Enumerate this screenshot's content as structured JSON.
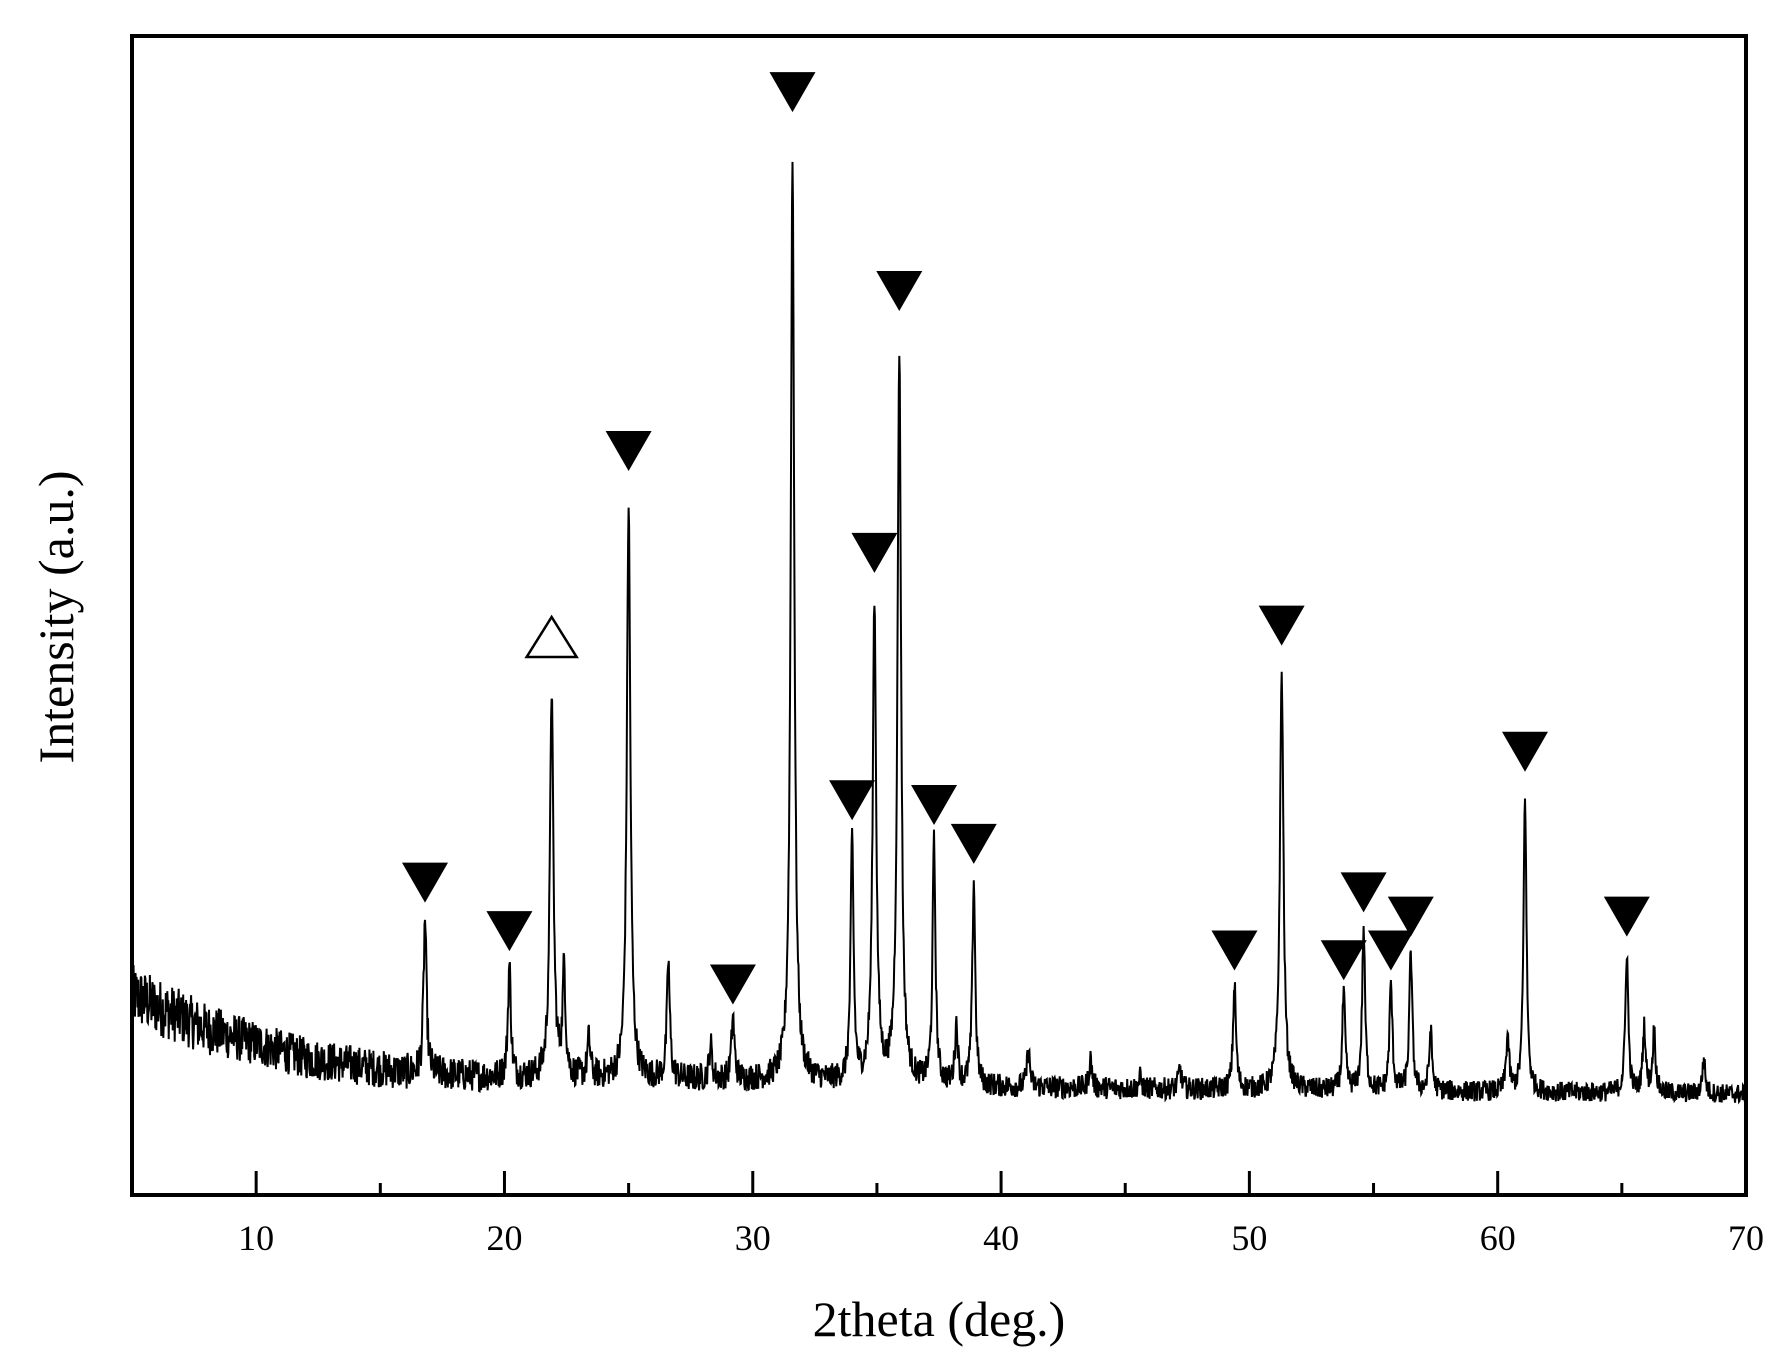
{
  "chart_data": {
    "type": "line",
    "xlabel": "2theta (deg.)",
    "ylabel": "Intensity (a.u.)",
    "xlim": [
      5,
      70
    ],
    "ylim": [
      0,
      100
    ],
    "x_ticks": [
      10,
      20,
      30,
      40,
      50,
      60,
      70
    ],
    "x_minor_ticks": [
      15,
      25,
      35,
      45,
      55,
      65
    ],
    "y_ticks_shown": false,
    "grid": false,
    "legend": "none",
    "line_color": "#000000",
    "baseline": {
      "points": [
        [
          5,
          17
        ],
        [
          8,
          13.5
        ],
        [
          12,
          10.5
        ],
        [
          16,
          9
        ],
        [
          20,
          8.5
        ],
        [
          30,
          8.2
        ],
        [
          40,
          7.5
        ],
        [
          50,
          7.2
        ],
        [
          60,
          7
        ],
        [
          70,
          6.8
        ]
      ],
      "noise_amplitude": [
        [
          5,
          3.2
        ],
        [
          10,
          2.3
        ],
        [
          20,
          1.6
        ],
        [
          40,
          1.2
        ],
        [
          70,
          1.0
        ]
      ]
    },
    "series": [
      {
        "peaks": [
          {
            "x": 16.8,
            "y": 25.5,
            "marker": "filled-triangle-down"
          },
          {
            "x": 20.2,
            "y": 20.5,
            "marker": "filled-triangle-down"
          },
          {
            "x": 21.9,
            "y": 50,
            "marker": "open-triangle-up"
          },
          {
            "x": 22.4,
            "y": 20
          },
          {
            "x": 23.4,
            "y": 12.5
          },
          {
            "x": 25.0,
            "y": 70,
            "marker": "filled-triangle-down"
          },
          {
            "x": 26.6,
            "y": 21
          },
          {
            "x": 28.3,
            "y": 12
          },
          {
            "x": 29.2,
            "y": 15,
            "marker": "filled-triangle-down"
          },
          {
            "x": 31.6,
            "y": 107,
            "marker": "filled-triangle-down"
          },
          {
            "x": 34.0,
            "y": 34,
            "marker": "filled-triangle-down"
          },
          {
            "x": 34.9,
            "y": 59.5,
            "marker": "filled-triangle-down"
          },
          {
            "x": 35.9,
            "y": 86.5,
            "marker": "filled-triangle-down"
          },
          {
            "x": 37.3,
            "y": 33.5,
            "marker": "filled-triangle-down"
          },
          {
            "x": 38.2,
            "y": 14
          },
          {
            "x": 38.9,
            "y": 29.5,
            "marker": "filled-triangle-down"
          },
          {
            "x": 41.1,
            "y": 11.5
          },
          {
            "x": 43.6,
            "y": 10.5
          },
          {
            "x": 45.6,
            "y": 8.5
          },
          {
            "x": 47.2,
            "y": 9.5
          },
          {
            "x": 49.4,
            "y": 18.5,
            "marker": "filled-triangle-down"
          },
          {
            "x": 51.3,
            "y": 52,
            "marker": "filled-triangle-down"
          },
          {
            "x": 53.8,
            "y": 17.5,
            "marker": "filled-triangle-down"
          },
          {
            "x": 54.6,
            "y": 24.5,
            "marker": "filled-triangle-down"
          },
          {
            "x": 55.7,
            "y": 18.5,
            "marker": "filled-triangle-down"
          },
          {
            "x": 56.5,
            "y": 22,
            "marker": "filled-triangle-down"
          },
          {
            "x": 57.3,
            "y": 13.5
          },
          {
            "x": 60.4,
            "y": 13
          },
          {
            "x": 61.1,
            "y": 39,
            "marker": "filled-triangle-down"
          },
          {
            "x": 65.2,
            "y": 22,
            "marker": "filled-triangle-down"
          },
          {
            "x": 65.9,
            "y": 14
          },
          {
            "x": 66.3,
            "y": 13.5
          },
          {
            "x": 68.3,
            "y": 10.5
          }
        ]
      }
    ]
  }
}
